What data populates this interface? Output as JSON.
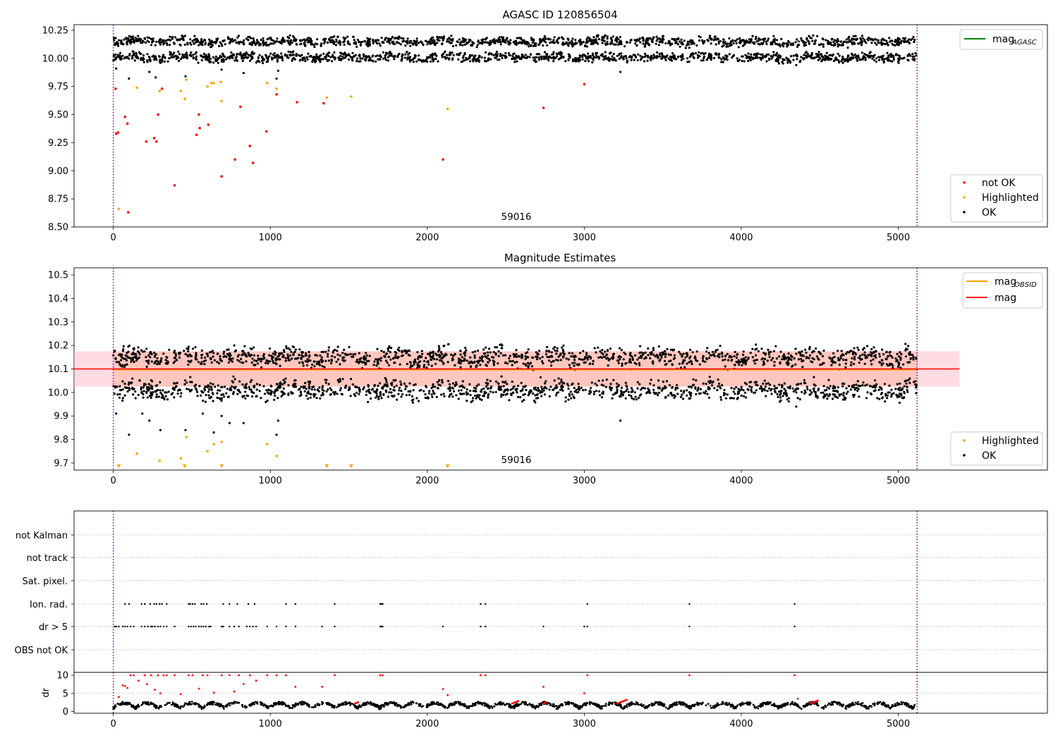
{
  "colors": {
    "ok": "#000000",
    "not_ok": "#ff0000",
    "highlighted": "#ffa500",
    "agasc_line": "#008000",
    "obsid_line": "#ffa500",
    "mag_line": "#ff0000",
    "band_fill": "#ffc0cb",
    "band_fill_inner": "#ffa07a",
    "vline": "#800080",
    "grid": "#b0b0b0"
  },
  "chart_data": [
    {
      "type": "scatter",
      "title": "AGASC ID 120856504",
      "annotation": "59016",
      "xlim": [
        -250,
        5950
      ],
      "ylim": [
        8.5,
        10.3
      ],
      "xticks": [
        "0",
        "1000",
        "2000",
        "3000",
        "4000",
        "5000"
      ],
      "yticks": [
        "8.50",
        "8.75",
        "9.00",
        "9.25",
        "9.50",
        "9.75",
        "10.00",
        "10.25"
      ],
      "vlines": [
        0,
        5120
      ],
      "legend_lines": [
        {
          "name_main": "mag",
          "name_sub": "AGASC",
          "color": "#008000"
        }
      ],
      "legend_points": [
        {
          "name": "not OK",
          "color": "#ff0000"
        },
        {
          "name": "Highlighted",
          "color": "#ffa500"
        },
        {
          "name": "OK",
          "color": "#000000"
        }
      ],
      "ok_bands": [
        10.15,
        10.01
      ],
      "series": [
        {
          "name": "not OK",
          "x": [
            15,
            18,
            30,
            75,
            90,
            210,
            260,
            275,
            285,
            310,
            390,
            530,
            545,
            550,
            605,
            690,
            775,
            810,
            870,
            890,
            975,
            1040,
            1170,
            1340,
            2100,
            2740,
            3000,
            95
          ],
          "y": [
            9.73,
            9.33,
            9.34,
            9.48,
            9.42,
            9.26,
            9.29,
            9.26,
            9.5,
            9.73,
            8.87,
            9.32,
            9.5,
            9.38,
            9.41,
            8.95,
            9.1,
            9.57,
            9.22,
            9.07,
            9.35,
            9.68,
            9.61,
            9.6,
            9.1,
            9.56,
            9.77,
            8.63
          ]
        },
        {
          "name": "Highlighted",
          "x": [
            35,
            150,
            295,
            430,
            455,
            465,
            600,
            625,
            640,
            685,
            690,
            980,
            1040,
            1360,
            1515,
            2130
          ],
          "y": [
            8.66,
            9.74,
            9.71,
            9.71,
            9.64,
            9.81,
            9.75,
            9.78,
            9.78,
            9.79,
            9.62,
            9.78,
            9.73,
            9.65,
            9.66,
            9.55
          ]
        }
      ]
    },
    {
      "type": "scatter",
      "title": "Magnitude Estimates",
      "annotation": "59016",
      "xlim": [
        -250,
        5950
      ],
      "ylim": [
        9.67,
        10.53
      ],
      "xticks": [
        "0",
        "1000",
        "2000",
        "3000",
        "4000",
        "5000"
      ],
      "yticks": [
        "9.7",
        "9.8",
        "9.9",
        "10.0",
        "10.1",
        "10.2",
        "10.3",
        "10.4",
        "10.5"
      ],
      "vlines": [
        0,
        5120
      ],
      "mag": 10.1,
      "mag_band": [
        10.025,
        10.175
      ],
      "obsid_line": 10.097,
      "line_xrange": [
        -250,
        5390
      ],
      "legend_lines": [
        {
          "name_main": "mag",
          "name_sub": "OBSID",
          "color": "#ffa500"
        },
        {
          "name_main": "mag",
          "name_sub": "",
          "color": "#ff0000"
        }
      ],
      "legend_points": [
        {
          "name": "Highlighted",
          "color": "#ffa500"
        },
        {
          "name": "OK",
          "color": "#000000"
        }
      ],
      "ok_bands": [
        10.15,
        10.01
      ],
      "series": [
        {
          "name": "Highlighted",
          "x": [
            150,
            295,
            430,
            465,
            600,
            640,
            690,
            980,
            1040
          ],
          "y": [
            9.74,
            9.71,
            9.72,
            9.81,
            9.75,
            9.78,
            9.79,
            9.78,
            9.73
          ]
        },
        {
          "name": "Highlighted (below range)",
          "x": [
            35,
            455,
            690,
            1360,
            1515,
            2130
          ],
          "y": [
            9.675,
            9.675,
            9.675,
            9.675,
            9.675,
            9.675
          ]
        }
      ]
    },
    {
      "type": "scatter",
      "title": "",
      "xlim": [
        -250,
        5950
      ],
      "categories": [
        "not Kalman",
        "not track",
        "Sat. pixel.",
        "Ion. rad.",
        "dr > 5",
        "OBS not OK"
      ],
      "vlines": [
        0,
        5120
      ],
      "flags": {
        "Ion. rad.": [
          75,
          100,
          180,
          200,
          235,
          260,
          275,
          295,
          310,
          340,
          480,
          490,
          505,
          520,
          560,
          575,
          595,
          700,
          740,
          790,
          860,
          900,
          1100,
          1160,
          1410,
          1700,
          1705,
          1710,
          1715,
          2340,
          2370,
          3020,
          3670,
          4340
        ],
        "dr > 5": [
          10,
          20,
          35,
          60,
          75,
          90,
          110,
          130,
          180,
          200,
          220,
          240,
          250,
          265,
          285,
          300,
          320,
          340,
          390,
          480,
          495,
          510,
          525,
          545,
          560,
          575,
          590,
          610,
          620,
          690,
          700,
          740,
          770,
          800,
          850,
          870,
          890,
          910,
          980,
          1040,
          1100,
          1160,
          1330,
          1410,
          1700,
          1705,
          1710,
          1715,
          2100,
          2340,
          2370,
          2740,
          3000,
          3020,
          3670,
          4340
        ]
      }
    },
    {
      "type": "scatter",
      "title": "",
      "ylabel": "dr",
      "xlim": [
        -250,
        5950
      ],
      "ylim": [
        -0.5,
        10.8
      ],
      "xticks": [
        "0",
        "1000",
        "2000",
        "3000",
        "4000",
        "5000"
      ],
      "yticks": [
        "0",
        "5",
        "10"
      ],
      "vlines": [
        0,
        5120
      ],
      "series": [
        {
          "name": "dr (not OK)",
          "x": [
            35,
            60,
            75,
            90,
            110,
            130,
            160,
            200,
            215,
            240,
            265,
            285,
            300,
            320,
            340,
            390,
            430,
            480,
            505,
            545,
            570,
            600,
            640,
            690,
            740,
            770,
            800,
            830,
            870,
            910,
            980,
            1040,
            1100,
            1160,
            1330,
            1410,
            1700,
            1715,
            2100,
            2130,
            2340,
            2370,
            2740,
            3000,
            3020,
            3670,
            4340,
            4360
          ],
          "y": [
            4.0,
            7.2,
            7.0,
            6.5,
            10,
            10,
            8.5,
            10,
            7.5,
            10,
            6.0,
            10,
            5.0,
            10,
            10,
            10,
            4.8,
            10,
            10,
            6.3,
            10,
            10,
            5.2,
            10,
            10,
            5.5,
            10,
            7.6,
            10,
            8.5,
            10,
            10,
            10,
            6.8,
            6.8,
            10,
            10,
            10,
            6.2,
            4.5,
            10,
            10,
            6.8,
            5.0,
            10,
            10,
            10,
            3.5
          ]
        }
      ]
    }
  ]
}
